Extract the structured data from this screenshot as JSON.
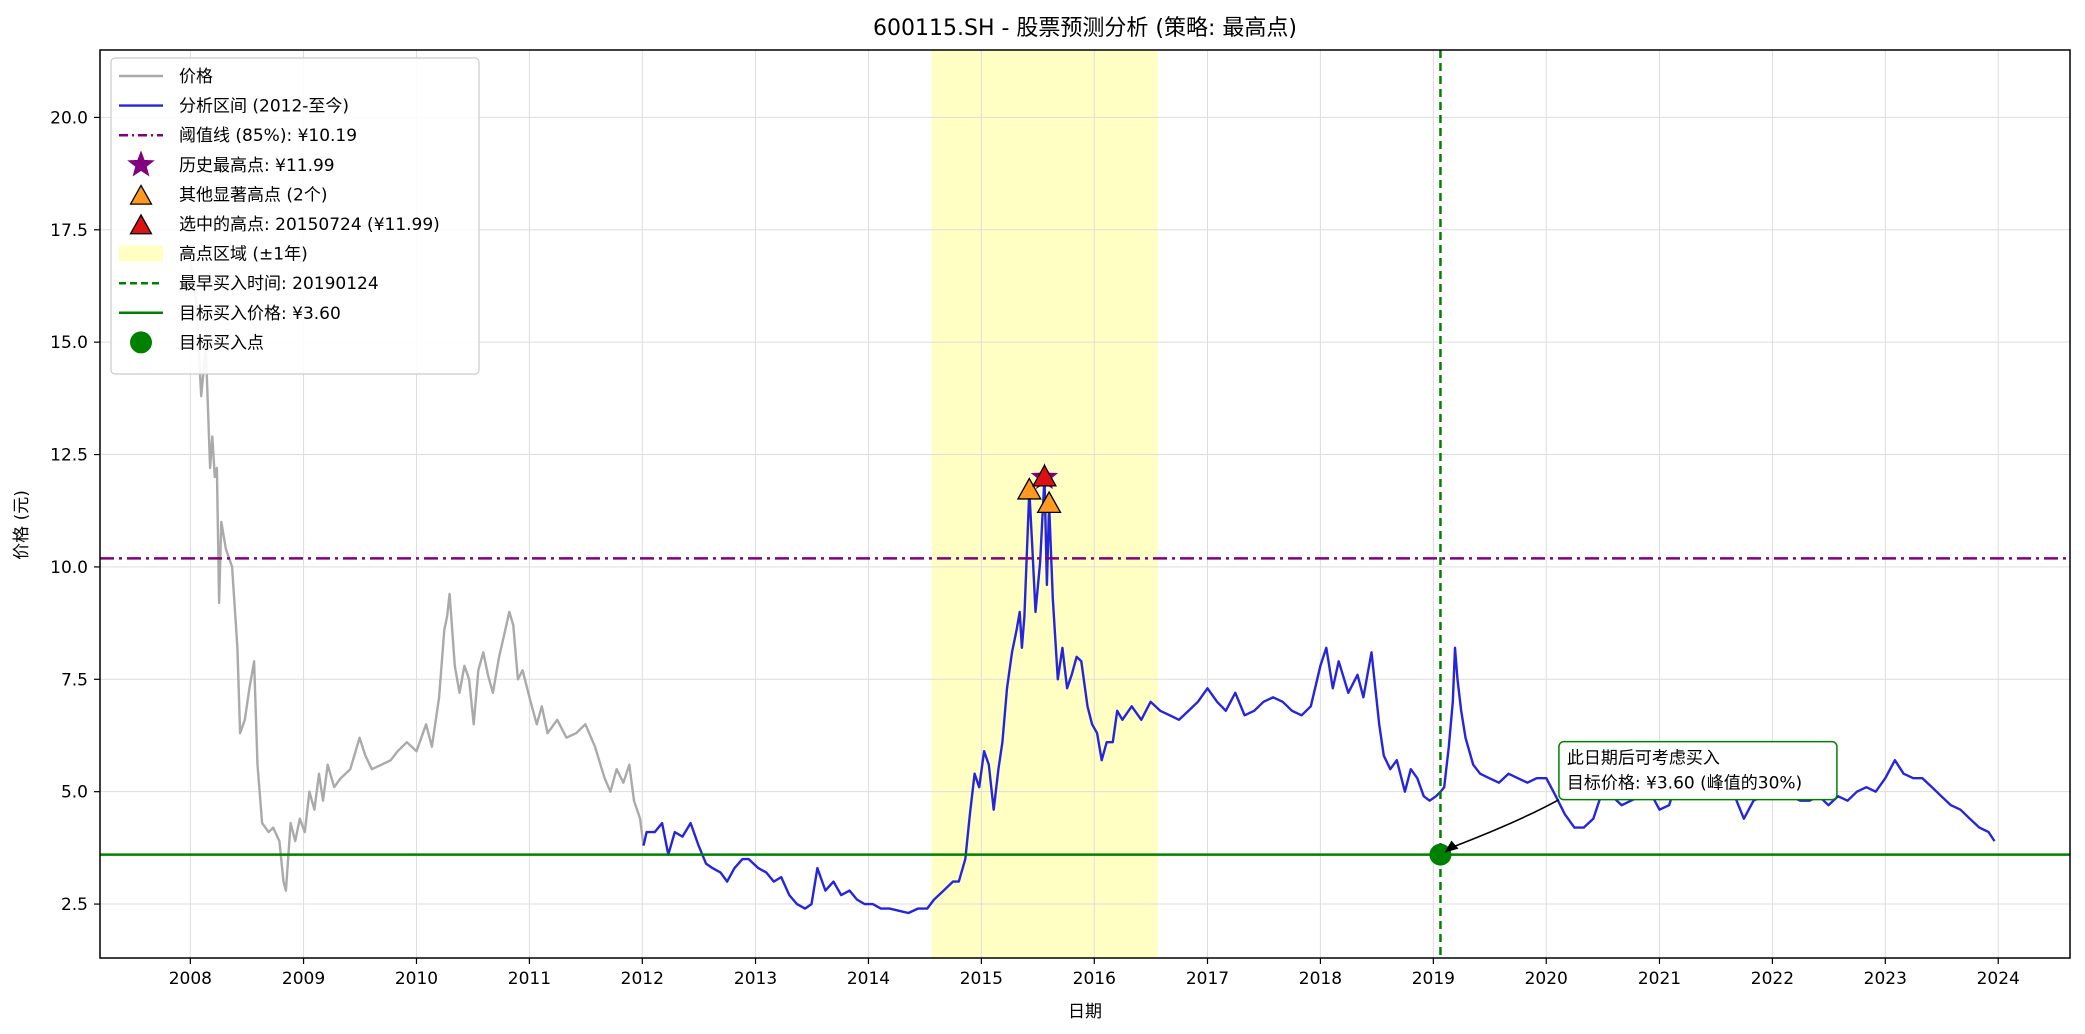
{
  "chart_data": {
    "type": "line",
    "title": "600115.SH  - 股票预测分析 (策略: 最高点)",
    "xlabel": "日期",
    "ylabel": "价格 (元)",
    "xlim": [
      "2007-03-15",
      "2024-08-20"
    ],
    "ylim": [
      1.3,
      21.5
    ],
    "x_ticks": [
      "2008",
      "2009",
      "2010",
      "2011",
      "2012",
      "2013",
      "2014",
      "2015",
      "2016",
      "2017",
      "2018",
      "2019",
      "2020",
      "2021",
      "2022",
      "2023",
      "2024"
    ],
    "y_ticks": [
      "2.5",
      "5.0",
      "7.5",
      "10.0",
      "12.5",
      "15.0",
      "17.5",
      "20.0"
    ],
    "grid": true,
    "legend_position": "top-left",
    "series": [
      {
        "name": "价格",
        "color": "#aaaaaa",
        "points": [
          [
            "2008-01-01",
            16.8
          ],
          [
            "2008-01-20",
            15.9
          ],
          [
            "2008-02-05",
            13.8
          ],
          [
            "2008-02-20",
            14.9
          ],
          [
            "2008-03-05",
            12.2
          ],
          [
            "2008-03-12",
            12.9
          ],
          [
            "2008-03-20",
            12.0
          ],
          [
            "2008-03-27",
            12.2
          ],
          [
            "2008-04-03",
            9.2
          ],
          [
            "2008-04-10",
            11.0
          ],
          [
            "2008-04-25",
            10.4
          ],
          [
            "2008-05-15",
            10.0
          ],
          [
            "2008-06-01",
            8.2
          ],
          [
            "2008-06-10",
            6.3
          ],
          [
            "2008-06-25",
            6.6
          ],
          [
            "2008-07-10",
            7.3
          ],
          [
            "2008-07-25",
            7.9
          ],
          [
            "2008-08-05",
            5.6
          ],
          [
            "2008-08-20",
            4.3
          ],
          [
            "2008-09-10",
            4.1
          ],
          [
            "2008-09-25",
            4.2
          ],
          [
            "2008-10-15",
            3.9
          ],
          [
            "2008-10-28",
            3.0
          ],
          [
            "2008-11-05",
            2.8
          ],
          [
            "2008-11-20",
            4.3
          ],
          [
            "2008-12-05",
            3.9
          ],
          [
            "2008-12-20",
            4.4
          ],
          [
            "2009-01-05",
            4.1
          ],
          [
            "2009-01-20",
            5.0
          ],
          [
            "2009-02-05",
            4.6
          ],
          [
            "2009-02-20",
            5.4
          ],
          [
            "2009-03-05",
            4.8
          ],
          [
            "2009-03-20",
            5.6
          ],
          [
            "2009-04-10",
            5.1
          ],
          [
            "2009-05-01",
            5.3
          ],
          [
            "2009-06-01",
            5.5
          ],
          [
            "2009-07-01",
            6.2
          ],
          [
            "2009-07-20",
            5.8
          ],
          [
            "2009-08-10",
            5.5
          ],
          [
            "2009-09-10",
            5.6
          ],
          [
            "2009-10-10",
            5.7
          ],
          [
            "2009-11-01",
            5.9
          ],
          [
            "2009-12-01",
            6.1
          ],
          [
            "2010-01-01",
            5.9
          ],
          [
            "2010-02-01",
            6.5
          ],
          [
            "2010-02-20",
            6.0
          ],
          [
            "2010-03-15",
            7.1
          ],
          [
            "2010-04-01",
            8.6
          ],
          [
            "2010-04-10",
            8.9
          ],
          [
            "2010-04-18",
            9.4
          ],
          [
            "2010-05-05",
            7.8
          ],
          [
            "2010-05-20",
            7.2
          ],
          [
            "2010-06-05",
            7.8
          ],
          [
            "2010-06-20",
            7.5
          ],
          [
            "2010-07-05",
            6.5
          ],
          [
            "2010-07-20",
            7.7
          ],
          [
            "2010-08-05",
            8.1
          ],
          [
            "2010-08-20",
            7.6
          ],
          [
            "2010-09-05",
            7.2
          ],
          [
            "2010-09-25",
            8.0
          ],
          [
            "2010-10-15",
            8.6
          ],
          [
            "2010-10-28",
            9.0
          ],
          [
            "2010-11-10",
            8.7
          ],
          [
            "2010-11-25",
            7.5
          ],
          [
            "2010-12-10",
            7.7
          ],
          [
            "2011-01-05",
            7.0
          ],
          [
            "2011-01-25",
            6.5
          ],
          [
            "2011-02-10",
            6.9
          ],
          [
            "2011-03-01",
            6.3
          ],
          [
            "2011-04-01",
            6.6
          ],
          [
            "2011-05-01",
            6.2
          ],
          [
            "2011-06-01",
            6.3
          ],
          [
            "2011-07-01",
            6.5
          ],
          [
            "2011-08-01",
            6.0
          ],
          [
            "2011-09-01",
            5.3
          ],
          [
            "2011-09-20",
            5.0
          ],
          [
            "2011-10-10",
            5.5
          ],
          [
            "2011-11-01",
            5.2
          ],
          [
            "2011-11-20",
            5.6
          ],
          [
            "2011-12-05",
            4.8
          ],
          [
            "2011-12-25",
            4.4
          ],
          [
            "2012-01-05",
            3.8
          ]
        ]
      },
      {
        "name": "分析区间 (2012-至今)",
        "color": "#2525dd",
        "points": [
          [
            "2012-01-05",
            3.8
          ],
          [
            "2012-01-15",
            4.1
          ],
          [
            "2012-02-10",
            4.1
          ],
          [
            "2012-03-05",
            4.3
          ],
          [
            "2012-03-25",
            3.6
          ],
          [
            "2012-04-15",
            4.1
          ],
          [
            "2012-05-10",
            4.0
          ],
          [
            "2012-06-05",
            4.3
          ],
          [
            "2012-07-01",
            3.8
          ],
          [
            "2012-07-25",
            3.4
          ],
          [
            "2012-08-15",
            3.3
          ],
          [
            "2012-09-10",
            3.2
          ],
          [
            "2012-10-01",
            3.0
          ],
          [
            "2012-10-25",
            3.3
          ],
          [
            "2012-11-20",
            3.5
          ],
          [
            "2012-12-10",
            3.5
          ],
          [
            "2013-01-10",
            3.3
          ],
          [
            "2013-02-05",
            3.2
          ],
          [
            "2013-03-01",
            3.0
          ],
          [
            "2013-03-25",
            3.1
          ],
          [
            "2013-04-20",
            2.7
          ],
          [
            "2013-05-15",
            2.5
          ],
          [
            "2013-06-10",
            2.4
          ],
          [
            "2013-07-01",
            2.5
          ],
          [
            "2013-07-20",
            3.3
          ],
          [
            "2013-08-15",
            2.8
          ],
          [
            "2013-09-10",
            3.0
          ],
          [
            "2013-10-05",
            2.7
          ],
          [
            "2013-11-01",
            2.8
          ],
          [
            "2013-11-25",
            2.6
          ],
          [
            "2013-12-20",
            2.5
          ],
          [
            "2014-01-15",
            2.5
          ],
          [
            "2014-02-10",
            2.4
          ],
          [
            "2014-03-10",
            2.4
          ],
          [
            "2014-04-10",
            2.35
          ],
          [
            "2014-05-10",
            2.3
          ],
          [
            "2014-06-10",
            2.4
          ],
          [
            "2014-07-10",
            2.4
          ],
          [
            "2014-08-01",
            2.6
          ],
          [
            "2014-09-01",
            2.8
          ],
          [
            "2014-10-01",
            3.0
          ],
          [
            "2014-10-20",
            3.0
          ],
          [
            "2014-11-10",
            3.5
          ],
          [
            "2014-11-25",
            4.5
          ],
          [
            "2014-12-10",
            5.4
          ],
          [
            "2014-12-25",
            5.1
          ],
          [
            "2015-01-10",
            5.9
          ],
          [
            "2015-01-25",
            5.6
          ],
          [
            "2015-02-10",
            4.6
          ],
          [
            "2015-02-25",
            5.5
          ],
          [
            "2015-03-10",
            6.1
          ],
          [
            "2015-03-25",
            7.3
          ],
          [
            "2015-04-10",
            8.1
          ],
          [
            "2015-04-25",
            8.6
          ],
          [
            "2015-05-05",
            9.0
          ],
          [
            "2015-05-12",
            8.2
          ],
          [
            "2015-05-20",
            8.9
          ],
          [
            "2015-06-05",
            11.7
          ],
          [
            "2015-06-15",
            10.4
          ],
          [
            "2015-06-25",
            9.0
          ],
          [
            "2015-07-10",
            10.1
          ],
          [
            "2015-07-24",
            11.99
          ],
          [
            "2015-08-01",
            9.6
          ],
          [
            "2015-08-08",
            11.4
          ],
          [
            "2015-08-20",
            9.3
          ],
          [
            "2015-09-05",
            7.5
          ],
          [
            "2015-09-20",
            8.2
          ],
          [
            "2015-10-05",
            7.3
          ],
          [
            "2015-10-20",
            7.6
          ],
          [
            "2015-11-05",
            8.0
          ],
          [
            "2015-11-20",
            7.9
          ],
          [
            "2015-12-10",
            6.9
          ],
          [
            "2015-12-25",
            6.5
          ],
          [
            "2016-01-10",
            6.3
          ],
          [
            "2016-01-25",
            5.7
          ],
          [
            "2016-02-10",
            6.1
          ],
          [
            "2016-03-01",
            6.1
          ],
          [
            "2016-03-15",
            6.8
          ],
          [
            "2016-04-01",
            6.6
          ],
          [
            "2016-05-01",
            6.9
          ],
          [
            "2016-06-01",
            6.6
          ],
          [
            "2016-07-01",
            7.0
          ],
          [
            "2016-08-01",
            6.8
          ],
          [
            "2016-09-01",
            6.7
          ],
          [
            "2016-10-01",
            6.6
          ],
          [
            "2016-11-01",
            6.8
          ],
          [
            "2016-12-01",
            7.0
          ],
          [
            "2017-01-01",
            7.3
          ],
          [
            "2017-02-01",
            7.0
          ],
          [
            "2017-03-01",
            6.8
          ],
          [
            "2017-04-01",
            7.2
          ],
          [
            "2017-05-01",
            6.7
          ],
          [
            "2017-06-01",
            6.8
          ],
          [
            "2017-07-01",
            7.0
          ],
          [
            "2017-08-01",
            7.1
          ],
          [
            "2017-09-01",
            7.0
          ],
          [
            "2017-10-01",
            6.8
          ],
          [
            "2017-11-01",
            6.7
          ],
          [
            "2017-12-01",
            6.9
          ],
          [
            "2018-01-01",
            7.8
          ],
          [
            "2018-01-20",
            8.2
          ],
          [
            "2018-02-10",
            7.3
          ],
          [
            "2018-03-01",
            7.9
          ],
          [
            "2018-04-01",
            7.2
          ],
          [
            "2018-05-01",
            7.6
          ],
          [
            "2018-05-20",
            7.1
          ],
          [
            "2018-06-15",
            8.1
          ],
          [
            "2018-07-10",
            6.5
          ],
          [
            "2018-07-25",
            5.8
          ],
          [
            "2018-08-15",
            5.5
          ],
          [
            "2018-09-05",
            5.7
          ],
          [
            "2018-10-01",
            5.0
          ],
          [
            "2018-10-20",
            5.5
          ],
          [
            "2018-11-10",
            5.3
          ],
          [
            "2018-12-01",
            4.9
          ],
          [
            "2018-12-20",
            4.8
          ],
          [
            "2019-01-10",
            4.9
          ],
          [
            "2019-01-24",
            5.0
          ],
          [
            "2019-02-05",
            5.1
          ],
          [
            "2019-02-20",
            6.0
          ],
          [
            "2019-03-05",
            7.0
          ],
          [
            "2019-03-12",
            8.2
          ],
          [
            "2019-03-20",
            7.5
          ],
          [
            "2019-04-01",
            6.8
          ],
          [
            "2019-04-15",
            6.2
          ],
          [
            "2019-05-10",
            5.6
          ],
          [
            "2019-06-01",
            5.4
          ],
          [
            "2019-07-01",
            5.3
          ],
          [
            "2019-08-01",
            5.2
          ],
          [
            "2019-09-01",
            5.4
          ],
          [
            "2019-10-01",
            5.3
          ],
          [
            "2019-11-01",
            5.2
          ],
          [
            "2019-12-01",
            5.3
          ],
          [
            "2020-01-01",
            5.3
          ],
          [
            "2020-02-01",
            4.9
          ],
          [
            "2020-03-01",
            4.5
          ],
          [
            "2020-04-01",
            4.2
          ],
          [
            "2020-05-01",
            4.2
          ],
          [
            "2020-06-01",
            4.4
          ],
          [
            "2020-07-10",
            5.2
          ],
          [
            "2020-08-01",
            4.9
          ],
          [
            "2020-09-01",
            4.7
          ],
          [
            "2020-10-01",
            4.8
          ],
          [
            "2020-11-01",
            4.9
          ],
          [
            "2020-12-01",
            5.0
          ],
          [
            "2021-01-01",
            4.6
          ],
          [
            "2021-02-01",
            4.7
          ],
          [
            "2021-03-01",
            5.3
          ],
          [
            "2021-04-01",
            5.0
          ],
          [
            "2021-05-01",
            5.3
          ],
          [
            "2021-06-01",
            5.5
          ],
          [
            "2021-07-01",
            5.2
          ],
          [
            "2021-08-01",
            5.0
          ],
          [
            "2021-09-01",
            4.9
          ],
          [
            "2021-10-01",
            4.4
          ],
          [
            "2021-11-01",
            4.8
          ],
          [
            "2021-12-01",
            4.9
          ],
          [
            "2022-01-01",
            5.6
          ],
          [
            "2022-02-01",
            6.0
          ],
          [
            "2022-02-15",
            5.4
          ],
          [
            "2022-03-01",
            4.9
          ],
          [
            "2022-04-01",
            4.8
          ],
          [
            "2022-05-01",
            4.8
          ],
          [
            "2022-06-01",
            4.9
          ],
          [
            "2022-07-01",
            4.7
          ],
          [
            "2022-08-01",
            4.9
          ],
          [
            "2022-09-01",
            4.8
          ],
          [
            "2022-10-01",
            5.0
          ],
          [
            "2022-11-01",
            5.1
          ],
          [
            "2022-12-01",
            5.0
          ],
          [
            "2023-01-01",
            5.3
          ],
          [
            "2023-02-01",
            5.7
          ],
          [
            "2023-03-01",
            5.4
          ],
          [
            "2023-04-01",
            5.3
          ],
          [
            "2023-05-01",
            5.3
          ],
          [
            "2023-06-01",
            5.1
          ],
          [
            "2023-07-01",
            4.9
          ],
          [
            "2023-08-01",
            4.7
          ],
          [
            "2023-09-01",
            4.6
          ],
          [
            "2023-10-01",
            4.4
          ],
          [
            "2023-11-01",
            4.2
          ],
          [
            "2023-12-01",
            4.1
          ],
          [
            "2023-12-20",
            3.9
          ]
        ]
      }
    ],
    "threshold": {
      "name": "阈值线 (85%): ¥10.19",
      "value": 10.19,
      "color": "#800080"
    },
    "target_price": {
      "name": "目标买入价格: ¥3.60",
      "value": 3.6,
      "color": "#008000"
    },
    "earliest_buy": {
      "name": "最早买入时间: 20190124",
      "date": "2019-01-24",
      "color": "#008000"
    },
    "highlight_band": {
      "name": "高点区域 (±1年)",
      "from": "2014-07-24",
      "to": "2016-07-24",
      "color": "#ffffc4"
    },
    "historic_high": {
      "name": "历史最高点: ¥11.99",
      "date": "2015-07-24",
      "value": 11.99,
      "color": "#800080"
    },
    "other_highs": {
      "name": "其他显著高点 (2个)",
      "color": "#ff9922",
      "points": [
        [
          "2015-06-05",
          11.7
        ],
        [
          "2015-08-08",
          11.4
        ]
      ]
    },
    "selected_high": {
      "name": "选中的高点: 20150724 (¥11.99)",
      "date": "2015-07-24",
      "value": 11.99,
      "color": "#dd1111"
    },
    "buy_point": {
      "name": "目标买入点",
      "date": "2019-01-24",
      "value": 3.6,
      "color": "#008000"
    },
    "annotation": {
      "line1": "此日期后可考虑买入",
      "line2": "目标价格: ¥3.60 (峰值的30%)",
      "anchor_date": "2019-01-24",
      "anchor_value": 3.6,
      "text_date": "2019-08-01",
      "text_value": 5.0
    }
  }
}
